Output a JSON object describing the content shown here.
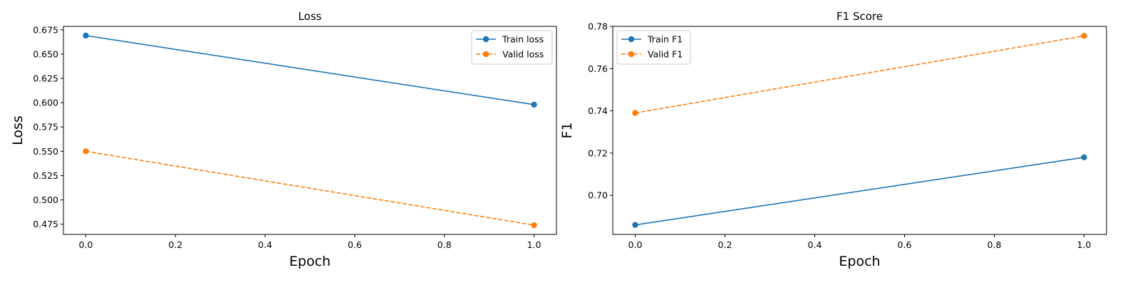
{
  "chart_data": [
    {
      "type": "line",
      "title": "Loss",
      "xlabel": "Epoch",
      "ylabel": "Loss",
      "xlim": [
        -0.05,
        1.05
      ],
      "ylim": [
        0.4645,
        0.6785
      ],
      "xticks": [
        0.0,
        0.2,
        0.4,
        0.6,
        0.8,
        1.0
      ],
      "xtick_labels": [
        "0.0",
        "0.2",
        "0.4",
        "0.6",
        "0.8",
        "1.0"
      ],
      "yticks": [
        0.475,
        0.5,
        0.525,
        0.55,
        0.575,
        0.6,
        0.625,
        0.65,
        0.675
      ],
      "ytick_labels": [
        "0.475",
        "0.500",
        "0.525",
        "0.550",
        "0.575",
        "0.600",
        "0.625",
        "0.650",
        "0.675"
      ],
      "legend_position": "top-right",
      "grid": false,
      "series": [
        {
          "name": "Train loss",
          "x": [
            0,
            1
          ],
          "y": [
            0.669,
            0.598
          ],
          "color": "#1f77b4",
          "linestyle": "solid",
          "marker": "circle"
        },
        {
          "name": "Valid loss",
          "x": [
            0,
            1
          ],
          "y": [
            0.55,
            0.474
          ],
          "color": "#ff7f0e",
          "linestyle": "dashed",
          "marker": "circle"
        }
      ]
    },
    {
      "type": "line",
      "title": "F1 Score",
      "xlabel": "Epoch",
      "ylabel": "F1",
      "xlim": [
        -0.05,
        1.05
      ],
      "ylim": [
        0.6815,
        0.78
      ],
      "xticks": [
        0.0,
        0.2,
        0.4,
        0.6,
        0.8,
        1.0
      ],
      "xtick_labels": [
        "0.0",
        "0.2",
        "0.4",
        "0.6",
        "0.8",
        "1.0"
      ],
      "yticks": [
        0.7,
        0.72,
        0.74,
        0.76,
        0.78
      ],
      "ytick_labels": [
        "0.70",
        "0.72",
        "0.74",
        "0.76",
        "0.78"
      ],
      "legend_position": "top-left",
      "grid": false,
      "series": [
        {
          "name": "Train F1",
          "x": [
            0,
            1
          ],
          "y": [
            0.686,
            0.718
          ],
          "color": "#1f77b4",
          "linestyle": "solid",
          "marker": "circle"
        },
        {
          "name": "Valid F1",
          "x": [
            0,
            1
          ],
          "y": [
            0.739,
            0.7755
          ],
          "color": "#ff7f0e",
          "linestyle": "dashed",
          "marker": "circle"
        }
      ]
    }
  ]
}
